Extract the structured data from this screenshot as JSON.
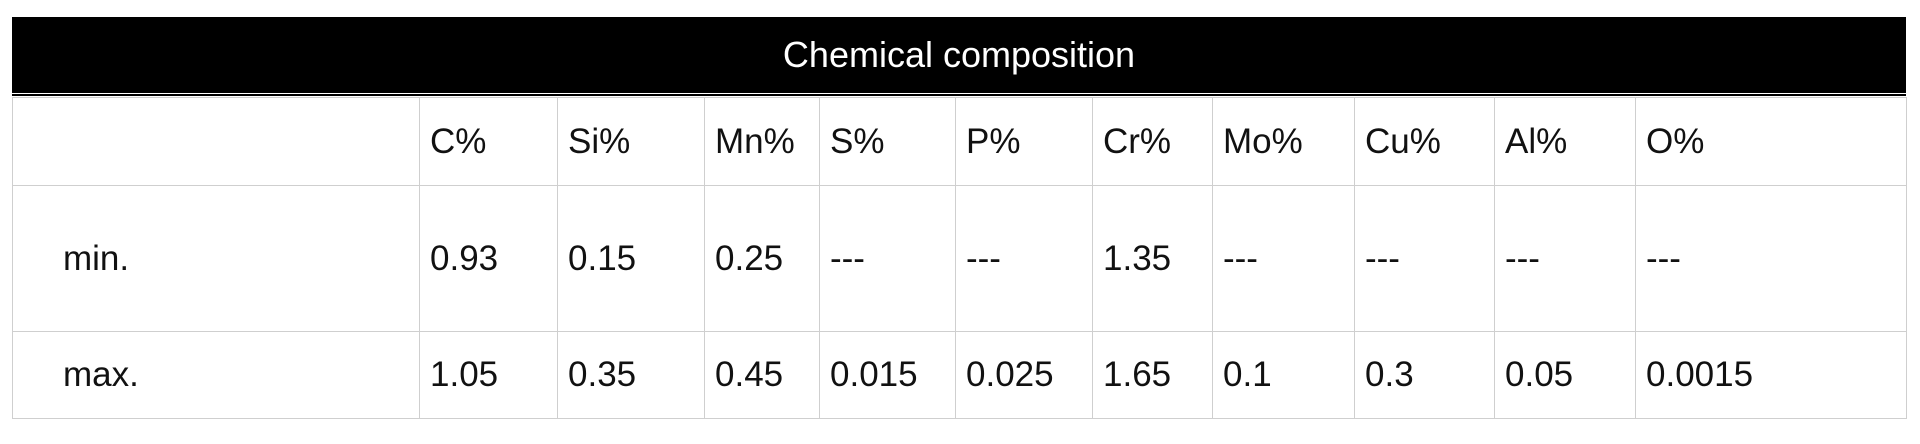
{
  "table": {
    "title": "Chemical composition",
    "header": [
      "C%",
      "Si%",
      "Mn%",
      "S%",
      "P%",
      "Cr%",
      "Mo%",
      "Cu%",
      "Al%",
      "O%"
    ],
    "rows": [
      {
        "label": "min.",
        "values": [
          "0.93",
          "0.15",
          "0.25",
          "---",
          "---",
          "1.35",
          "---",
          "---",
          "---",
          "---"
        ]
      },
      {
        "label": "max.",
        "values": [
          "1.05",
          "0.35",
          "0.45",
          "0.015",
          "0.025",
          "1.65",
          "0.1",
          "0.3",
          "0.05",
          "0.0015"
        ]
      }
    ]
  }
}
